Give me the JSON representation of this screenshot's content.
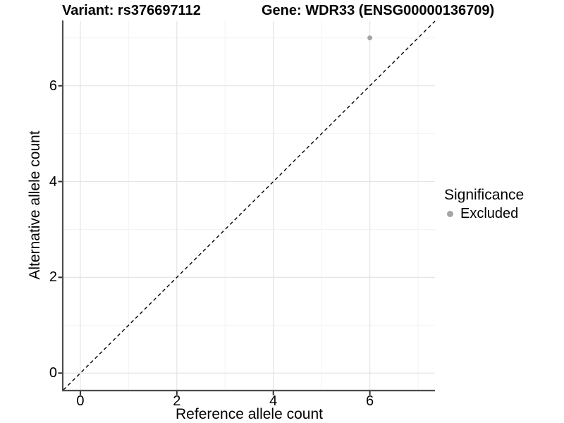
{
  "titles": {
    "variant": "Variant: rs376697112",
    "gene": "Gene: WDR33 (ENSG00000136709)"
  },
  "legend": {
    "title": "Significance",
    "items": [
      {
        "label": "Excluded",
        "color": "#a6a6a6"
      }
    ]
  },
  "colors": {
    "background": "#ffffff",
    "grid_major": "#e4e4e4",
    "grid_minor": "#f3f3f3",
    "axis_line": "#4d4d4d",
    "tick_mark": "#333333",
    "text": "#000000",
    "point": "#a6a6a6",
    "reference_line": "#000000"
  },
  "chart_data": {
    "type": "scatter",
    "title": "Variant: rs376697112   Gene: WDR33 (ENSG00000136709)",
    "xlabel": "Reference allele count",
    "ylabel": "Alternative allele count",
    "legend_title": "Significance",
    "legend_position": "right",
    "xlim": [
      -0.35,
      7.35
    ],
    "ylim": [
      -0.35,
      7.35
    ],
    "x_ticks": [
      0,
      2,
      4,
      6
    ],
    "y_ticks": [
      0,
      2,
      4,
      6
    ],
    "x_minor_ticks": [
      1,
      3,
      5,
      7
    ],
    "y_minor_ticks": [
      1,
      3,
      5,
      7
    ],
    "grid": "major+minor",
    "series": [
      {
        "name": "Excluded",
        "color": "#a6a6a6",
        "points": [
          {
            "x": 6,
            "y": 7
          }
        ]
      }
    ],
    "reference_line": {
      "kind": "identity",
      "from": [
        -0.35,
        -0.35
      ],
      "to": [
        7.35,
        7.35
      ],
      "style": "dashed",
      "color": "#000000"
    }
  }
}
